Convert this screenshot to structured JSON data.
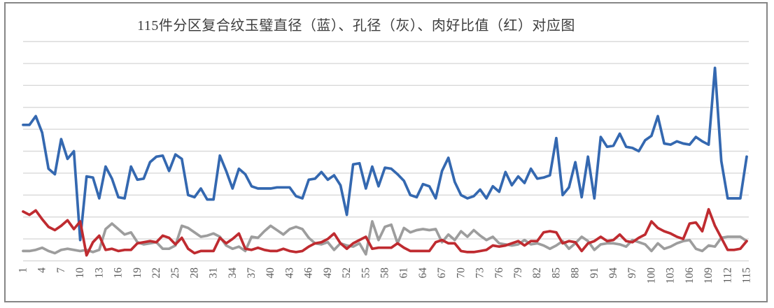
{
  "chart_data": {
    "type": "line",
    "title": "115件分区复合纹玉璧直径（蓝）、孔径（灰）、肉好比值（红）对应图",
    "x_range": [
      1,
      115
    ],
    "x_tick_interval": 3,
    "x_tick_labels": [
      "1",
      "4",
      "7",
      "10",
      "13",
      "16",
      "19",
      "22",
      "25",
      "28",
      "31",
      "34",
      "37",
      "40",
      "43",
      "46",
      "49",
      "52",
      "55",
      "58",
      "61",
      "64",
      "67",
      "70",
      "73",
      "76",
      "79",
      "82",
      "85",
      "88",
      "91",
      "94",
      "97",
      "100",
      "103",
      "106",
      "109",
      "112",
      "115"
    ],
    "ylim": [
      0,
      10
    ],
    "y_gridline_interval": 1,
    "y_tick_labels_visible": false,
    "grid": "horizontal",
    "legend_position": "none",
    "gridline_color": "#d9d9d9",
    "frame_color": "#868686",
    "title_color": "#3d3d3d",
    "tick_label_color": "#595959",
    "series": [
      {
        "id": "diameter",
        "name": "直径（蓝）",
        "color": "#3468b0",
        "values": [
          6.2,
          6.2,
          6.6,
          5.85,
          4.2,
          3.95,
          5.55,
          4.65,
          5.0,
          0.95,
          3.85,
          3.8,
          2.85,
          4.3,
          3.75,
          2.9,
          2.85,
          4.3,
          3.7,
          3.75,
          4.5,
          4.75,
          4.8,
          4.1,
          4.85,
          4.65,
          3.0,
          2.9,
          3.3,
          2.8,
          2.8,
          4.8,
          4.1,
          3.3,
          4.2,
          3.95,
          3.4,
          3.3,
          3.3,
          3.3,
          3.35,
          3.35,
          3.35,
          2.95,
          2.85,
          3.7,
          3.75,
          4.05,
          3.7,
          3.9,
          3.45,
          2.1,
          4.4,
          4.45,
          3.3,
          4.3,
          3.4,
          4.25,
          4.2,
          3.95,
          3.65,
          3.0,
          2.9,
          3.5,
          3.4,
          2.85,
          4.1,
          4.7,
          3.6,
          3.0,
          2.85,
          2.95,
          3.25,
          2.85,
          3.4,
          3.15,
          4.05,
          3.45,
          3.85,
          3.55,
          4.2,
          3.75,
          3.8,
          3.9,
          5.6,
          3.0,
          3.35,
          4.5,
          2.9,
          4.75,
          2.85,
          5.65,
          5.2,
          5.25,
          5.8,
          5.2,
          5.15,
          5.0,
          5.5,
          5.7,
          6.6,
          5.35,
          5.3,
          5.45,
          5.35,
          5.3,
          5.65,
          5.45,
          5.3,
          8.8,
          4.55,
          2.85,
          2.85,
          2.85,
          4.75
        ]
      },
      {
        "id": "bore",
        "name": "孔径（灰）",
        "color": "#9d9d9d",
        "values": [
          0.45,
          0.45,
          0.5,
          0.6,
          0.45,
          0.35,
          0.5,
          0.55,
          0.5,
          0.45,
          0.5,
          0.4,
          0.5,
          1.45,
          1.7,
          1.45,
          1.2,
          1.3,
          0.85,
          0.75,
          0.8,
          0.85,
          0.55,
          0.55,
          0.7,
          1.6,
          1.5,
          1.3,
          1.1,
          1.15,
          1.25,
          1.1,
          0.7,
          0.55,
          0.65,
          0.45,
          1.1,
          1.05,
          1.35,
          1.6,
          1.4,
          1.2,
          1.45,
          1.55,
          1.45,
          1.05,
          0.8,
          0.75,
          0.85,
          0.5,
          0.8,
          0.7,
          0.65,
          0.8,
          0.3,
          1.8,
          0.95,
          1.55,
          1.65,
          0.8,
          1.5,
          1.3,
          1.4,
          1.45,
          1.4,
          1.45,
          0.85,
          1.2,
          0.95,
          1.35,
          1.1,
          1.4,
          1.15,
          0.95,
          1.1,
          0.8,
          0.75,
          0.7,
          0.75,
          0.95,
          0.75,
          0.8,
          0.7,
          0.55,
          0.7,
          0.9,
          0.55,
          0.8,
          1.1,
          0.9,
          0.5,
          0.75,
          0.8,
          0.8,
          0.75,
          0.65,
          0.95,
          0.85,
          0.75,
          0.45,
          0.8,
          0.55,
          0.65,
          0.8,
          0.9,
          0.95,
          0.55,
          0.45,
          0.7,
          0.65,
          1.05,
          1.1,
          1.1,
          1.1,
          0.9
        ]
      },
      {
        "id": "ratio",
        "name": "肉好比值（红）",
        "color": "#bf2b30",
        "values": [
          2.25,
          2.1,
          2.3,
          1.9,
          1.55,
          1.4,
          1.6,
          1.85,
          1.45,
          1.8,
          0.25,
          0.85,
          1.15,
          0.5,
          0.55,
          0.45,
          0.5,
          0.5,
          0.8,
          0.85,
          0.9,
          0.85,
          1.15,
          1.05,
          0.75,
          1.05,
          0.55,
          0.35,
          0.45,
          0.45,
          0.45,
          1.05,
          0.8,
          1.0,
          1.25,
          0.55,
          0.5,
          0.6,
          0.5,
          0.45,
          0.45,
          0.55,
          0.45,
          0.4,
          0.45,
          0.65,
          0.8,
          0.85,
          1.0,
          1.25,
          0.8,
          0.55,
          0.8,
          0.95,
          1.1,
          0.55,
          0.6,
          0.6,
          0.6,
          0.8,
          0.6,
          0.45,
          0.45,
          0.45,
          0.45,
          0.85,
          0.95,
          0.8,
          0.8,
          0.45,
          0.4,
          0.4,
          0.45,
          0.5,
          0.7,
          0.65,
          0.7,
          0.8,
          0.9,
          0.7,
          0.9,
          0.9,
          1.3,
          1.35,
          1.3,
          0.8,
          0.9,
          0.85,
          0.45,
          0.8,
          0.9,
          1.1,
          0.9,
          0.95,
          1.2,
          0.9,
          0.85,
          1.05,
          1.2,
          1.8,
          1.5,
          1.35,
          1.25,
          1.1,
          1.0,
          1.7,
          1.75,
          1.35,
          2.35,
          1.6,
          1.05,
          0.5,
          0.5,
          0.55,
          0.9
        ]
      }
    ]
  }
}
